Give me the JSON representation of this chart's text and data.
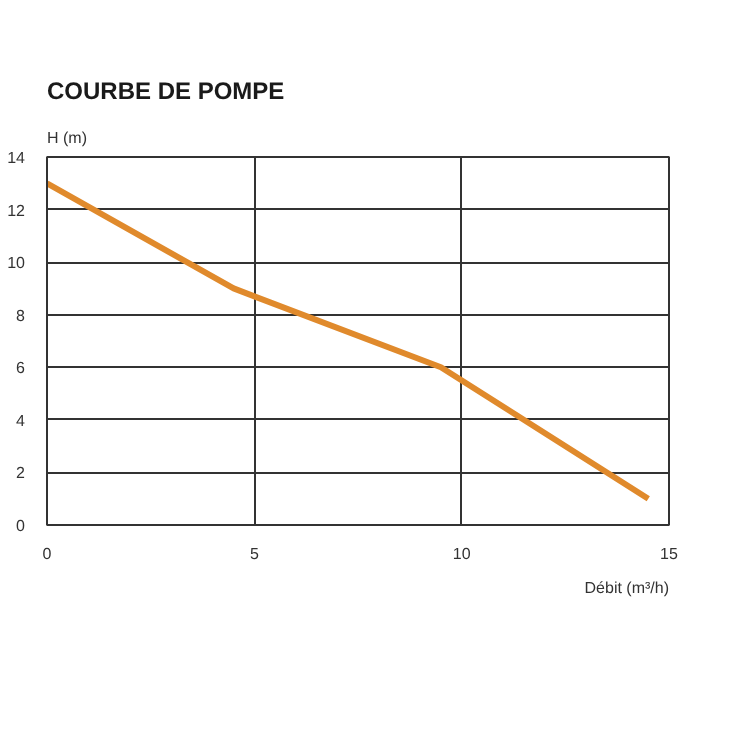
{
  "chart_data": {
    "type": "line",
    "title": "COURBE DE POMPE",
    "xlabel": "Débit (m³/h)",
    "ylabel": "H (m)",
    "x": [
      0,
      4.5,
      9.5,
      14.5
    ],
    "series": [
      {
        "color": "#e08a2c",
        "values": [
          13,
          9,
          6,
          1
        ]
      }
    ],
    "xlim": [
      0,
      15
    ],
    "ylim": [
      0,
      14
    ],
    "xticks": [
      0,
      5,
      10,
      15
    ],
    "yticks": [
      0,
      2,
      4,
      6,
      8,
      10,
      12,
      14
    ],
    "grid": true,
    "marker": "none",
    "line_style": "solid"
  }
}
